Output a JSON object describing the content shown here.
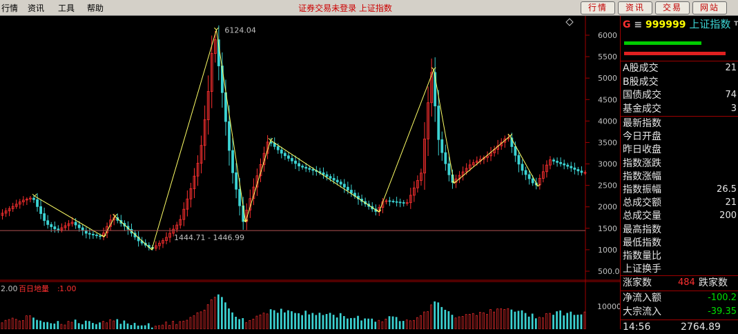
{
  "menu": [
    "行情",
    "资讯",
    "工具",
    "帮助"
  ],
  "status_title": "证券交易未登录 上证指数",
  "nav_buttons": [
    "行情",
    "资讯",
    "交易",
    "网站"
  ],
  "colors": {
    "up": "#ff3030",
    "down": "#3cd3d3",
    "trend": "#ffff66",
    "axis": "#c00000",
    "label": "#c0c0c0"
  },
  "chart_data": [
    {
      "type": "candlestick",
      "title": "上证指数",
      "ylim": [
        300,
        6300
      ],
      "y_ticks": [
        "6000",
        "5500",
        "5000",
        "4500",
        "4000",
        "3500",
        "3000",
        "2500",
        "2000",
        "1500",
        "1000",
        "500.0"
      ],
      "y_tick_values": [
        6000,
        5500,
        5000,
        4500,
        4000,
        3500,
        3000,
        2500,
        2000,
        1500,
        1000,
        500
      ],
      "annotations": [
        "6124.04",
        "1444.71 - 1446.99"
      ],
      "peak_value": 6124.04,
      "support_line": 1446.99,
      "trend_points": [
        {
          "x": 0.057,
          "y": 2250
        },
        {
          "x": 0.176,
          "y": 1300
        },
        {
          "x": 0.195,
          "y": 1780
        },
        {
          "x": 0.258,
          "y": 1000
        },
        {
          "x": 0.369,
          "y": 6124
        },
        {
          "x": 0.419,
          "y": 1650
        },
        {
          "x": 0.462,
          "y": 3550
        },
        {
          "x": 0.648,
          "y": 1880
        },
        {
          "x": 0.742,
          "y": 5200
        },
        {
          "x": 0.777,
          "y": 2550
        },
        {
          "x": 0.873,
          "y": 3650
        },
        {
          "x": 0.921,
          "y": 2480
        }
      ],
      "series_anchors": [
        [
          0,
          1800
        ],
        [
          0.04,
          2150
        ],
        [
          0.058,
          2220
        ],
        [
          0.08,
          1620
        ],
        [
          0.1,
          1450
        ],
        [
          0.125,
          1650
        ],
        [
          0.15,
          1380
        ],
        [
          0.176,
          1300
        ],
        [
          0.195,
          1780
        ],
        [
          0.22,
          1500
        ],
        [
          0.24,
          1200
        ],
        [
          0.262,
          1020
        ],
        [
          0.285,
          1250
        ],
        [
          0.31,
          1650
        ],
        [
          0.33,
          2450
        ],
        [
          0.345,
          3200
        ],
        [
          0.358,
          4500
        ],
        [
          0.369,
          6124
        ],
        [
          0.382,
          4800
        ],
        [
          0.398,
          3000
        ],
        [
          0.419,
          1650
        ],
        [
          0.438,
          2500
        ],
        [
          0.462,
          3550
        ],
        [
          0.485,
          3250
        ],
        [
          0.515,
          2950
        ],
        [
          0.55,
          2800
        ],
        [
          0.585,
          2550
        ],
        [
          0.615,
          2200
        ],
        [
          0.648,
          1880
        ],
        [
          0.66,
          2150
        ],
        [
          0.7,
          2080
        ],
        [
          0.725,
          2800
        ],
        [
          0.742,
          5200
        ],
        [
          0.755,
          3500
        ],
        [
          0.777,
          2550
        ],
        [
          0.81,
          3000
        ],
        [
          0.84,
          3200
        ],
        [
          0.873,
          3650
        ],
        [
          0.895,
          2900
        ],
        [
          0.921,
          2480
        ],
        [
          0.945,
          3100
        ],
        [
          0.975,
          2950
        ],
        [
          1,
          2800
        ]
      ]
    },
    {
      "type": "bar",
      "title": "百日地量",
      "legend_left": "2.00",
      "legend_value": "1.00",
      "y_ticks": [
        "10000"
      ],
      "y_tick_values": [
        10000
      ]
    }
  ],
  "panel": {
    "header_letter": "G",
    "header_menu": "≡",
    "code": "999999",
    "name": "上证指数",
    "corner_mark": "T",
    "rows_top": [
      {
        "label": "A股成交",
        "value": "21"
      },
      {
        "label": "B股成交",
        "value": ""
      },
      {
        "label": "国债成交",
        "value": "74"
      },
      {
        "label": "基金成交",
        "value": "3"
      }
    ],
    "rows_mid": [
      {
        "label": "最新指数",
        "value": ""
      },
      {
        "label": "今日开盘",
        "value": ""
      },
      {
        "label": "昨日收盘",
        "value": ""
      },
      {
        "label": "指数涨跌",
        "value": ""
      },
      {
        "label": "指数涨幅",
        "value": ""
      },
      {
        "label": "指数振幅",
        "value": "26.5"
      },
      {
        "label": "总成交额",
        "value": "21"
      },
      {
        "label": "总成交量",
        "value": "200"
      },
      {
        "label": "最高指数",
        "value": ""
      },
      {
        "label": "最低指数",
        "value": ""
      },
      {
        "label": "指数量比",
        "value": ""
      },
      {
        "label": "上证换手",
        "value": ""
      }
    ],
    "updown": {
      "up_label": "涨家数",
      "up_value": "484",
      "down_label": "跌家数"
    },
    "flow": [
      {
        "label": "净流入额",
        "value": "-100.2"
      },
      {
        "label": "大宗流入",
        "value": "-39.35"
      }
    ],
    "time": "14:56",
    "last_price": "2764.89"
  }
}
